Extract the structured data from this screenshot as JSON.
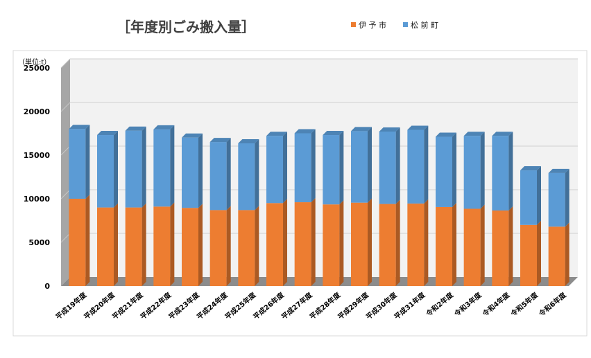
{
  "chart_data": {
    "type": "bar",
    "stacked": true,
    "title": "［年度別ごみ搬入量］",
    "unit_label": "（単位:t）",
    "ylim": [
      0,
      25000
    ],
    "y_ticks": [
      "0",
      "5000",
      "10000",
      "15000",
      "20000",
      "25000"
    ],
    "categories": [
      "平成19年度",
      "平成20年度",
      "平成21年度",
      "平成22年度",
      "平成23年度",
      "平成24年度",
      "平成25年度",
      "平成26年度",
      "平成27年度",
      "平成28年度",
      "平成29年度",
      "平成30年度",
      "平成31年度",
      "令和2年度",
      "令和3年度",
      "令和4年度",
      "令和5年度",
      "令和6年度"
    ],
    "series": [
      {
        "name": "伊 予 市",
        "color": "#ED7D31",
        "values": [
          10000,
          9000,
          9000,
          9100,
          8950,
          8700,
          8700,
          9500,
          9600,
          9350,
          9550,
          9400,
          9450,
          9050,
          8850,
          8650,
          7000,
          6800
        ]
      },
      {
        "name": "松 前 町",
        "color": "#5B9BD5",
        "values": [
          8000,
          8300,
          8800,
          8850,
          8050,
          7800,
          7650,
          7700,
          7900,
          7950,
          8200,
          8300,
          8450,
          8050,
          8350,
          8550,
          6250,
          6150
        ]
      }
    ],
    "legend_position": "top-right",
    "grid": true
  }
}
